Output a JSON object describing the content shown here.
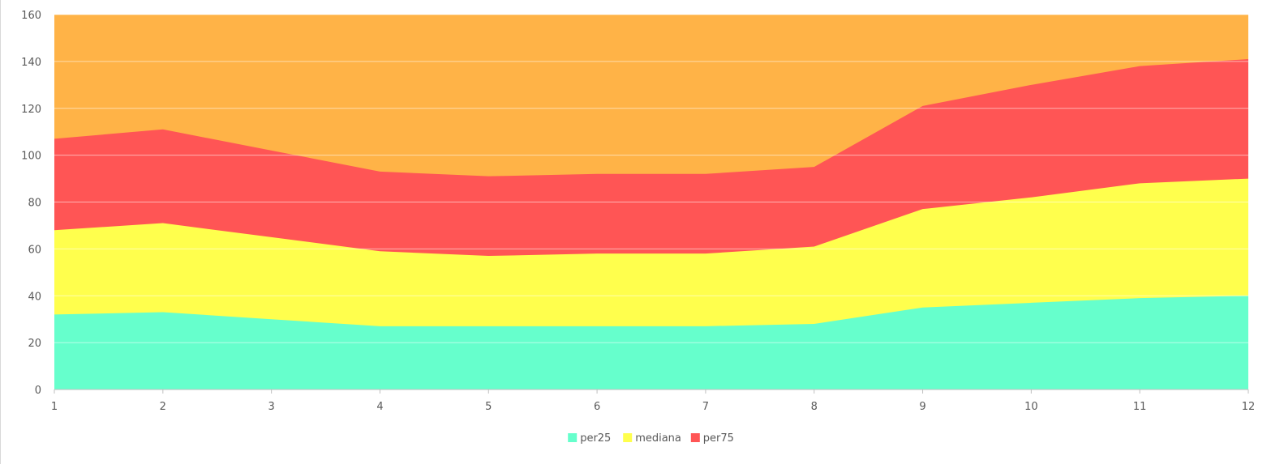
{
  "chart_data": {
    "type": "area",
    "stacked": false,
    "x": [
      1,
      2,
      3,
      4,
      5,
      6,
      7,
      8,
      9,
      10,
      11,
      12
    ],
    "ylim": [
      0,
      160
    ],
    "xlim": [
      1,
      12
    ],
    "yticks": [
      0,
      20,
      40,
      60,
      80,
      100,
      120,
      140,
      160
    ],
    "xticks": [
      1,
      2,
      3,
      4,
      5,
      6,
      7,
      8,
      9,
      10,
      11,
      12
    ],
    "grid": "horizontal",
    "legend_position": "bottom",
    "background_fill": {
      "top": 160,
      "color": "#FFB347"
    },
    "series": [
      {
        "name": "per75",
        "color": "#FF5555",
        "values": [
          107,
          111,
          102,
          93,
          91,
          92,
          92,
          95,
          121,
          130,
          138,
          141
        ]
      },
      {
        "name": "mediana",
        "color": "#FFFF4D",
        "values": [
          68,
          71,
          65,
          59,
          57,
          58,
          58,
          61,
          77,
          82,
          88,
          90
        ]
      },
      {
        "name": "per25",
        "color": "#66FFCC",
        "values": [
          32,
          33,
          30,
          27,
          27,
          27,
          27,
          28,
          35,
          37,
          39,
          40
        ]
      }
    ],
    "legend_order": [
      "per25",
      "mediana",
      "per75"
    ]
  }
}
